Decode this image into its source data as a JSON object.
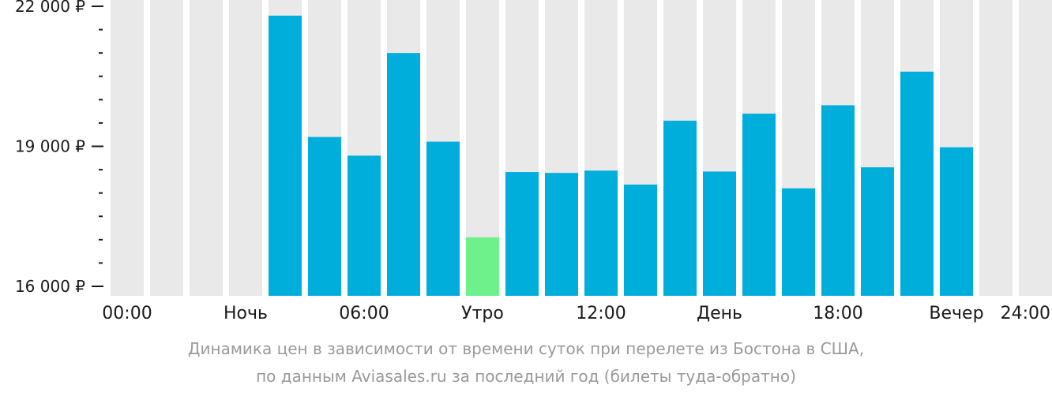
{
  "colors": {
    "background_column": "#e9e9e9",
    "bar": "#00aedb",
    "bar_highlight": "#6ef08a",
    "axis_text": "#1a1a1a",
    "tick": "#1a1a1a",
    "caption": "#9a9a9a"
  },
  "caption": {
    "line1": "Динамика цен в зависимости от времени суток при перелете из Бостона в США,",
    "line2": "по данным Aviasales.ru за последний год (билеты туда-обратно)"
  },
  "chart_data": {
    "type": "bar",
    "categories": [
      "00",
      "01",
      "02",
      "03",
      "04",
      "05",
      "06",
      "07",
      "08",
      "09",
      "10",
      "11",
      "12",
      "13",
      "14",
      "15",
      "16",
      "17",
      "18",
      "19",
      "20",
      "21",
      "22",
      "23"
    ],
    "values": [
      null,
      null,
      null,
      null,
      21800,
      19200,
      18800,
      21000,
      19100,
      null,
      18450,
      18430,
      18480,
      18180,
      19550,
      18460,
      19700,
      18100,
      19880,
      18550,
      20600,
      18980,
      null,
      null
    ],
    "highlight_index": 9,
    "highlight_value": 17050,
    "ylim": [
      16000,
      22000
    ],
    "y_ticks_labeled": [
      {
        "value": 22000,
        "label": "22 000 ₽"
      },
      {
        "value": 19000,
        "label": "19 000 ₽"
      },
      {
        "value": 16000,
        "label": "16 000 ₽"
      }
    ],
    "y_minor_ticks": [
      21500,
      21000,
      20500,
      20000,
      19500,
      18500,
      18000,
      17500,
      17000,
      16500
    ],
    "x_labels": [
      {
        "pos": 0,
        "label": "00:00"
      },
      {
        "pos": 3,
        "label": "Ночь"
      },
      {
        "pos": 6,
        "label": "06:00"
      },
      {
        "pos": 9,
        "label": "Утро"
      },
      {
        "pos": 12,
        "label": "12:00"
      },
      {
        "pos": 15,
        "label": "День"
      },
      {
        "pos": 18,
        "label": "18:00"
      },
      {
        "pos": 21,
        "label": "Вечер"
      },
      {
        "pos": 24,
        "label": "24:00"
      }
    ],
    "grid": false,
    "legend": "none"
  }
}
